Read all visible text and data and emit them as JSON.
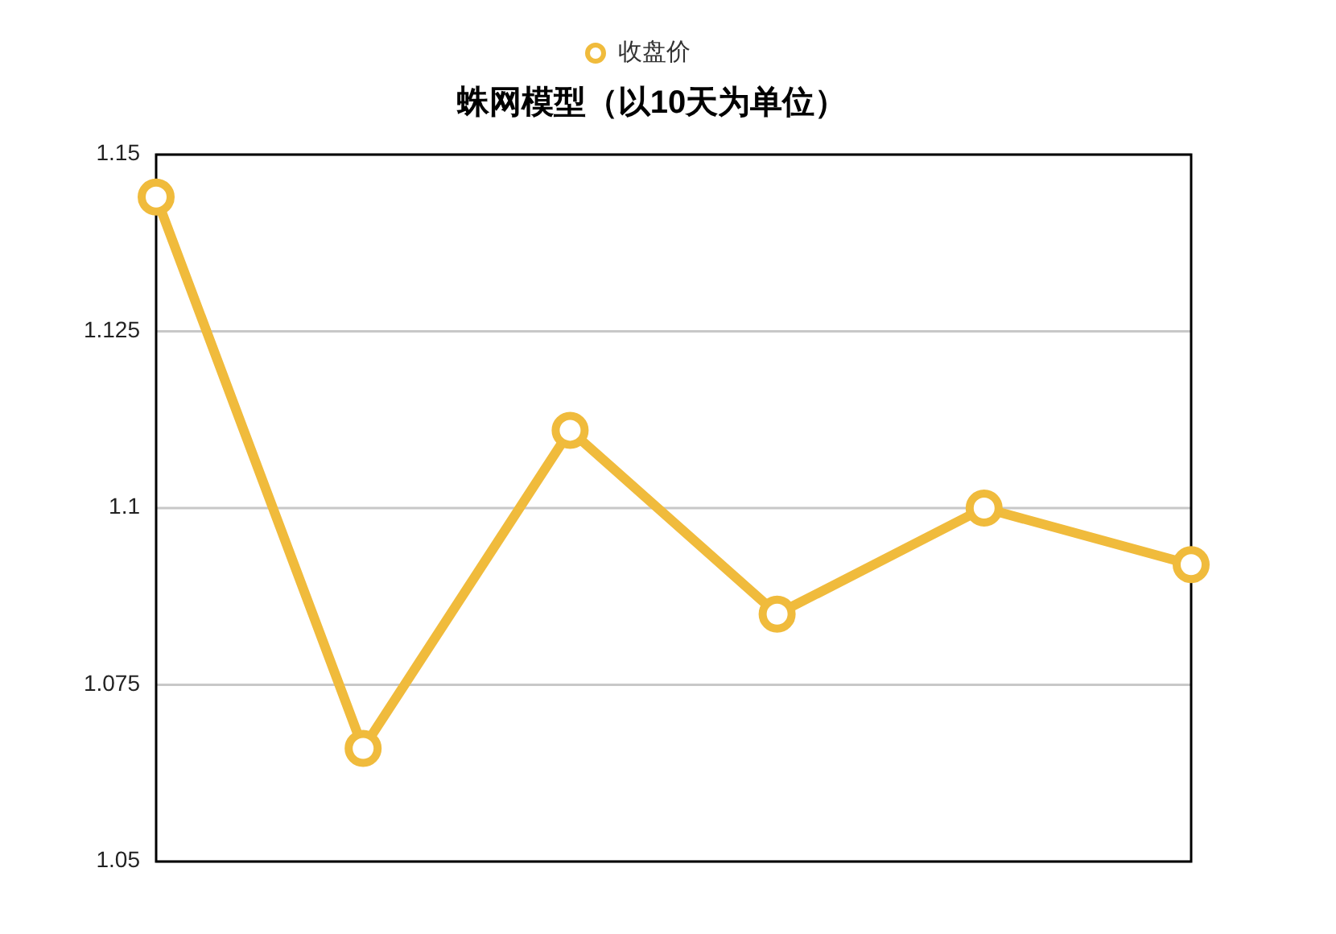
{
  "chart_data": {
    "type": "line",
    "title": "蛛网模型（以10天为单位）",
    "categories": [
      null,
      null,
      null,
      null,
      null,
      null
    ],
    "series": [
      {
        "name": "收盘价",
        "color": "#f0bb3c",
        "values": [
          1.144,
          1.066,
          1.111,
          1.085,
          1.1,
          1.092
        ]
      }
    ],
    "ylim": [
      1.05,
      1.15
    ],
    "yticks": [
      1.05,
      1.075,
      1.1,
      1.125,
      1.15
    ],
    "grid": "y",
    "legend": "top",
    "marker": "circle",
    "line_style": "solid",
    "tick_labels": "y"
  }
}
